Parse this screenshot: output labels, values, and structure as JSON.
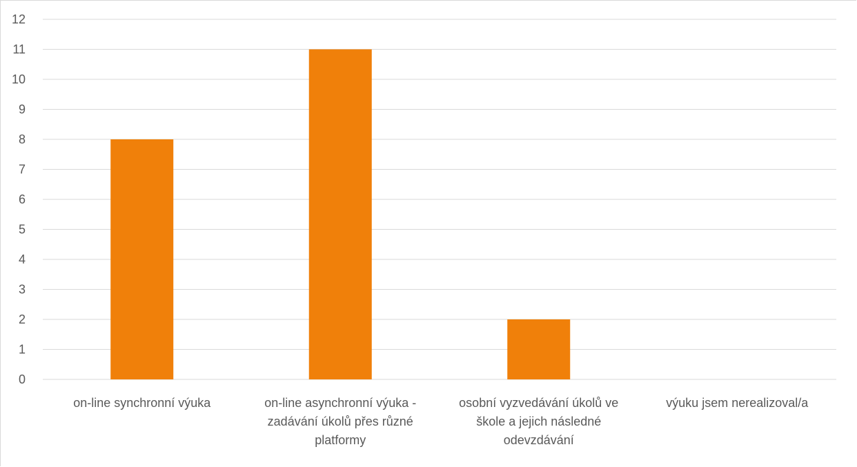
{
  "chart_data": {
    "type": "bar",
    "categories": [
      "on-line synchronní výuka",
      "on-line asynchronní výuka - zadávání úkolů přes různé platformy",
      "osobní vyzvedávání úkolů ve škole a jejich následné odevzdávání",
      "výuku jsem nerealizoval/a"
    ],
    "category_lines": [
      [
        "on-line synchronní výuka"
      ],
      [
        "on-line asynchronní výuka -",
        "zadávání úkolů přes různé",
        "platformy"
      ],
      [
        "osobní vyzvedávání úkolů ve",
        "škole a jejich následné",
        "odevzdávání"
      ],
      [
        "výuku jsem nerealizoval/a"
      ]
    ],
    "values": [
      8,
      11,
      2,
      0
    ],
    "ylim": [
      0,
      12
    ],
    "yticks": [
      0,
      1,
      2,
      3,
      4,
      5,
      6,
      7,
      8,
      9,
      10,
      11,
      12
    ],
    "grid": true,
    "legend": "none",
    "colors": {
      "bar": "#F0800A",
      "grid": "#d9d9d9",
      "text": "#595959"
    }
  }
}
